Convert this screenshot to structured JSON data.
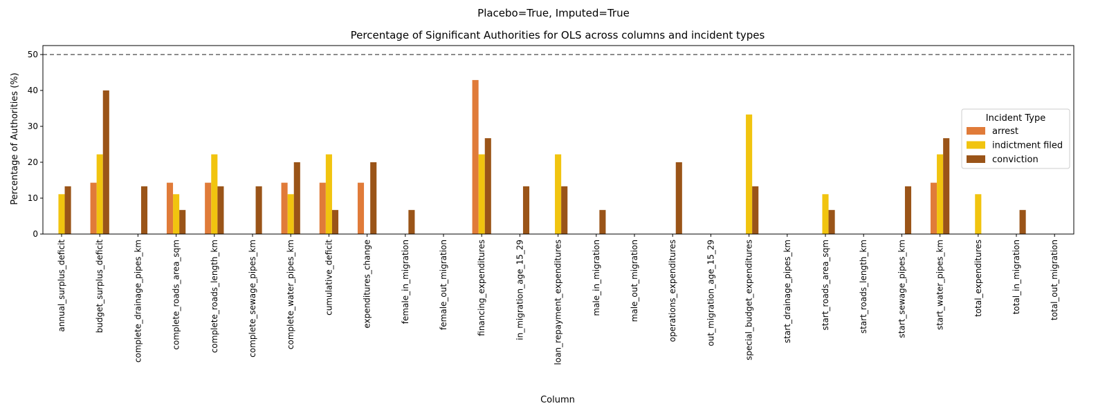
{
  "figure": {
    "suptitle": "Placebo=True, Imputed=True"
  },
  "chart_data": {
    "type": "bar",
    "title": "Percentage of Significant Authorities for OLS across columns and incident types",
    "xlabel": "Column",
    "ylabel": "Percentage of Authorities (%)",
    "ylim": [
      0,
      52.5
    ],
    "yticks": [
      0,
      10,
      20,
      30,
      40,
      50
    ],
    "grid": false,
    "reference_line": {
      "y": 50,
      "style": "dashed",
      "color": "#666666"
    },
    "legend": {
      "title": "Incident Type",
      "placement": "center-right"
    },
    "categories": [
      "annual_surplus_deficit",
      "budget_surplus_deficit",
      "complete_drainage_pipes_km",
      "complete_roads_area_sqm",
      "complete_roads_length_km",
      "complete_sewage_pipes_km",
      "complete_water_pipes_km",
      "cumulative_deficit",
      "expenditures_change",
      "female_in_migration",
      "female_out_migration",
      "financing_expenditures",
      "in_migration_age_15_29",
      "loan_repayment_expenditures",
      "male_in_migration",
      "male_out_migration",
      "operations_expenditures",
      "out_migration_age_15_29",
      "special_budget_expenditures",
      "start_drainage_pipes_km",
      "start_roads_area_sqm",
      "start_roads_length_km",
      "start_sewage_pipes_km",
      "start_water_pipes_km",
      "total_expenditures",
      "total_in_migration",
      "total_out_migration"
    ],
    "series": [
      {
        "name": "arrest",
        "color": "#e07b39",
        "values": [
          0,
          14.3,
          0,
          14.3,
          14.3,
          0,
          14.3,
          14.3,
          14.3,
          0,
          0,
          42.9,
          0,
          0,
          0,
          0,
          0,
          0,
          0,
          0,
          0,
          0,
          0,
          14.3,
          0,
          0,
          0
        ]
      },
      {
        "name": "indictment filed",
        "color": "#f1c40f",
        "values": [
          11.1,
          22.2,
          0,
          11.1,
          22.2,
          0,
          11.1,
          22.2,
          0,
          0,
          0,
          22.2,
          0,
          22.2,
          0,
          0,
          0,
          0,
          33.3,
          0,
          11.1,
          0,
          0,
          22.2,
          11.1,
          0,
          0
        ]
      },
      {
        "name": "conviction",
        "color": "#9a5418",
        "values": [
          13.3,
          40.0,
          13.3,
          6.7,
          13.3,
          13.3,
          20.0,
          6.7,
          20.0,
          6.7,
          0,
          26.7,
          13.3,
          13.3,
          6.7,
          0,
          20.0,
          0,
          13.3,
          0,
          6.7,
          0,
          13.3,
          26.7,
          0,
          6.7,
          0
        ]
      }
    ]
  }
}
